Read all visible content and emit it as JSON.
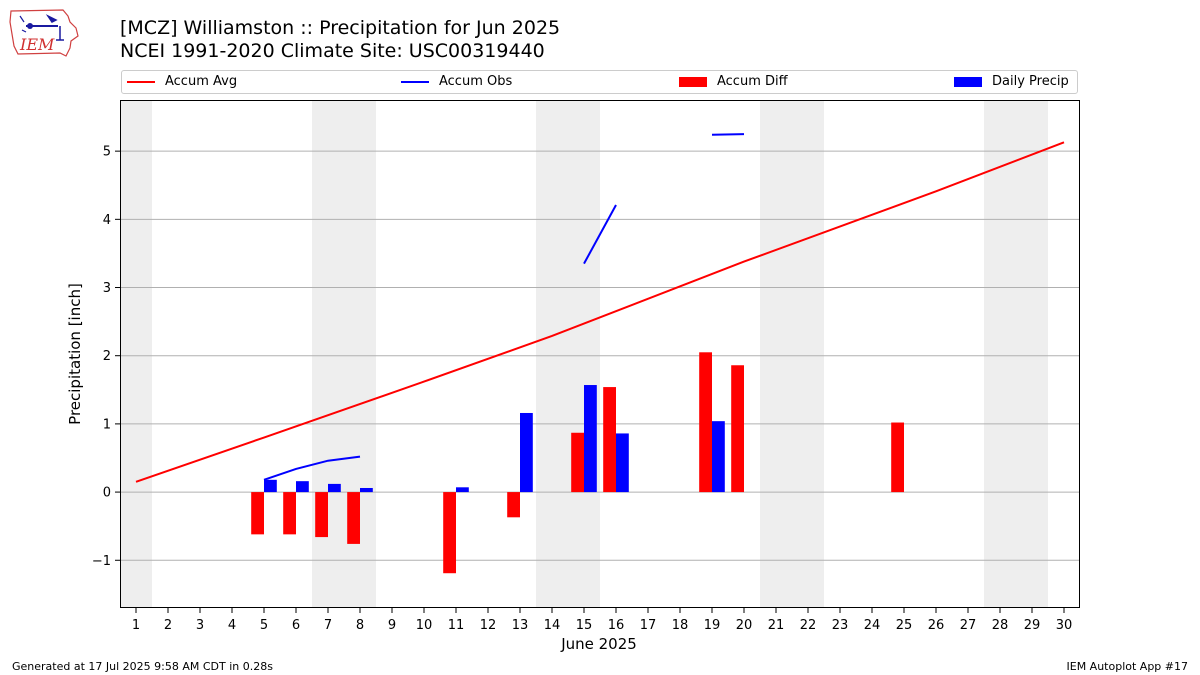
{
  "header": {
    "logo_text": "IEM",
    "title_line1": "[MCZ] Williamston :: Precipitation for Jun 2025",
    "title_line2": "NCEI 1991-2020 Climate Site: USC00319440"
  },
  "legend": {
    "items": [
      {
        "label": "Accum Avg",
        "kind": "line",
        "color": "#ff0000"
      },
      {
        "label": "Accum Obs",
        "kind": "line",
        "color": "#0000ff"
      },
      {
        "label": "Accum Diff",
        "kind": "box",
        "color": "#ff0000"
      },
      {
        "label": "Daily Precip",
        "kind": "box",
        "color": "#0000ff"
      }
    ]
  },
  "footer": {
    "left": "Generated at 17 Jul 2025 9:58 AM CDT in 0.28s",
    "right": "IEM Autoplot App #17"
  },
  "chart_data": {
    "type": "bar",
    "title": "[MCZ] Williamston :: Precipitation for Jun 2025",
    "subtitle": "NCEI 1991-2020 Climate Site: USC00319440",
    "xlabel": "June 2025",
    "ylabel": "Precipitation [inch]",
    "x": [
      1,
      2,
      3,
      4,
      5,
      6,
      7,
      8,
      9,
      10,
      11,
      12,
      13,
      14,
      15,
      16,
      17,
      18,
      19,
      20,
      21,
      22,
      23,
      24,
      25,
      26,
      27,
      28,
      29,
      30
    ],
    "xlim": [
      0.5,
      30.5
    ],
    "ylim": [
      -1.7,
      5.75
    ],
    "yticks": [
      -1,
      0,
      1,
      2,
      3,
      4,
      5
    ],
    "ytick_labels": [
      "−1",
      "0",
      "1",
      "2",
      "3",
      "4",
      "5"
    ],
    "grid": "horizontal",
    "legend_position": "top",
    "weekend_shading": [
      [
        0.5,
        1.5
      ],
      [
        6.5,
        8.5
      ],
      [
        13.5,
        15.5
      ],
      [
        20.5,
        22.5
      ],
      [
        27.5,
        29.5
      ]
    ],
    "series": [
      {
        "name": "Accum Avg",
        "type": "line",
        "color": "#ff0000",
        "x": [
          1,
          5,
          10,
          14,
          20,
          26,
          30
        ],
        "values": [
          0.15,
          0.8,
          1.62,
          2.29,
          3.38,
          4.41,
          5.13
        ]
      },
      {
        "name": "Accum Obs",
        "type": "line",
        "color": "#0000ff",
        "segments": [
          {
            "x": [
              5,
              6,
              7,
              8
            ],
            "values": [
              0.18,
              0.34,
              0.46,
              0.52
            ]
          },
          {
            "x": [
              15,
              16
            ],
            "values": [
              3.35,
              4.21
            ]
          },
          {
            "x": [
              19,
              20
            ],
            "values": [
              5.24,
              5.25
            ]
          }
        ]
      },
      {
        "name": "Accum Diff",
        "type": "bar",
        "color": "#ff0000",
        "x": [
          5,
          6,
          7,
          8,
          11,
          13,
          15,
          16,
          19,
          20,
          25
        ],
        "values": [
          -0.62,
          -0.62,
          -0.66,
          -0.76,
          -1.19,
          -0.37,
          0.87,
          1.54,
          2.05,
          1.86,
          1.02
        ]
      },
      {
        "name": "Daily Precip",
        "type": "bar",
        "color": "#0000ff",
        "x": [
          5,
          6,
          7,
          8,
          11,
          13,
          15,
          16,
          19
        ],
        "values": [
          0.18,
          0.16,
          0.12,
          0.06,
          0.07,
          1.16,
          1.57,
          0.86,
          1.04
        ]
      }
    ]
  }
}
